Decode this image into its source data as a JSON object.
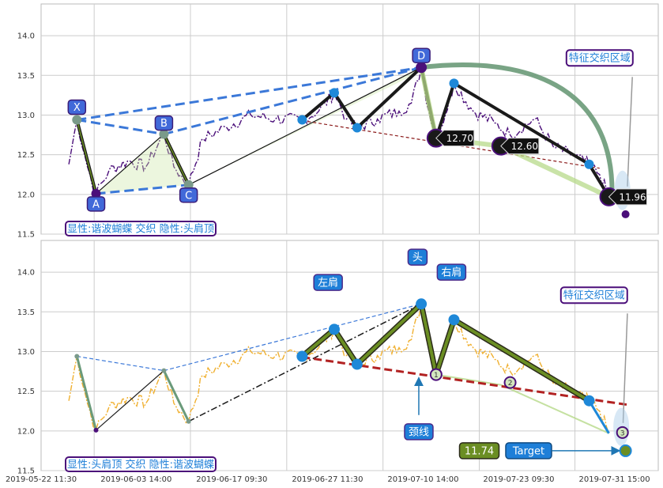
{
  "chart_data": [
    {
      "type": "line",
      "panel": "top",
      "ylim": [
        11.5,
        14.4
      ],
      "yticks": [
        "11.5",
        "12.0",
        "12.5",
        "13.0",
        "13.5",
        "14.0"
      ],
      "harmonic_points": [
        {
          "label": "X",
          "x": 0.058,
          "y": 12.94
        },
        {
          "label": "A",
          "x": 0.089,
          "y": 12.01
        },
        {
          "label": "B",
          "x": 0.199,
          "y": 12.76
        },
        {
          "label": "C",
          "x": 0.239,
          "y": 12.12
        },
        {
          "label": "D",
          "x": 0.616,
          "y": 13.6
        }
      ],
      "hs_points": [
        {
          "x": 0.423,
          "y": 12.94
        },
        {
          "x": 0.475,
          "y": 13.28
        },
        {
          "x": 0.512,
          "y": 12.84
        },
        {
          "x": 0.616,
          "y": 13.6
        },
        {
          "x": 0.64,
          "y": 12.71
        },
        {
          "x": 0.669,
          "y": 13.4
        },
        {
          "x": 0.888,
          "y": 12.38
        },
        {
          "x": 0.92,
          "y": 11.97
        }
      ],
      "badges": [
        {
          "label": "12.70",
          "x": 0.64,
          "y": 12.71
        },
        {
          "label": "12.60",
          "x": 0.745,
          "y": 12.61
        },
        {
          "label": "11.96",
          "x": 0.92,
          "y": 11.97
        }
      ],
      "zone_label": "特征交织区域",
      "caption": "显性:谐波蝴蝶 交织 隐性:头肩顶"
    },
    {
      "type": "line",
      "panel": "bottom",
      "ylim": [
        11.5,
        14.4
      ],
      "yticks": [
        "11.5",
        "12.0",
        "12.5",
        "13.0",
        "13.5",
        "14.0"
      ],
      "xticks": [
        "2019-05-22 11:30",
        "2019-06-03 14:00",
        "2019-06-17 09:30",
        "2019-06-27 11:30",
        "2019-07-10 14:00",
        "2019-07-23 09:30",
        "2019-07-31 15:00"
      ],
      "hs_labels": {
        "left_shoulder": "左肩",
        "head": "头",
        "right_shoulder": "右肩",
        "neckline": "颈线"
      },
      "markers": [
        "1",
        "2",
        "3"
      ],
      "target_value": "11.74",
      "target_label": "Target",
      "zone_label": "特征交织区域",
      "caption": "显性:头肩顶 交织 隐性:谐波蝴蝶"
    }
  ]
}
